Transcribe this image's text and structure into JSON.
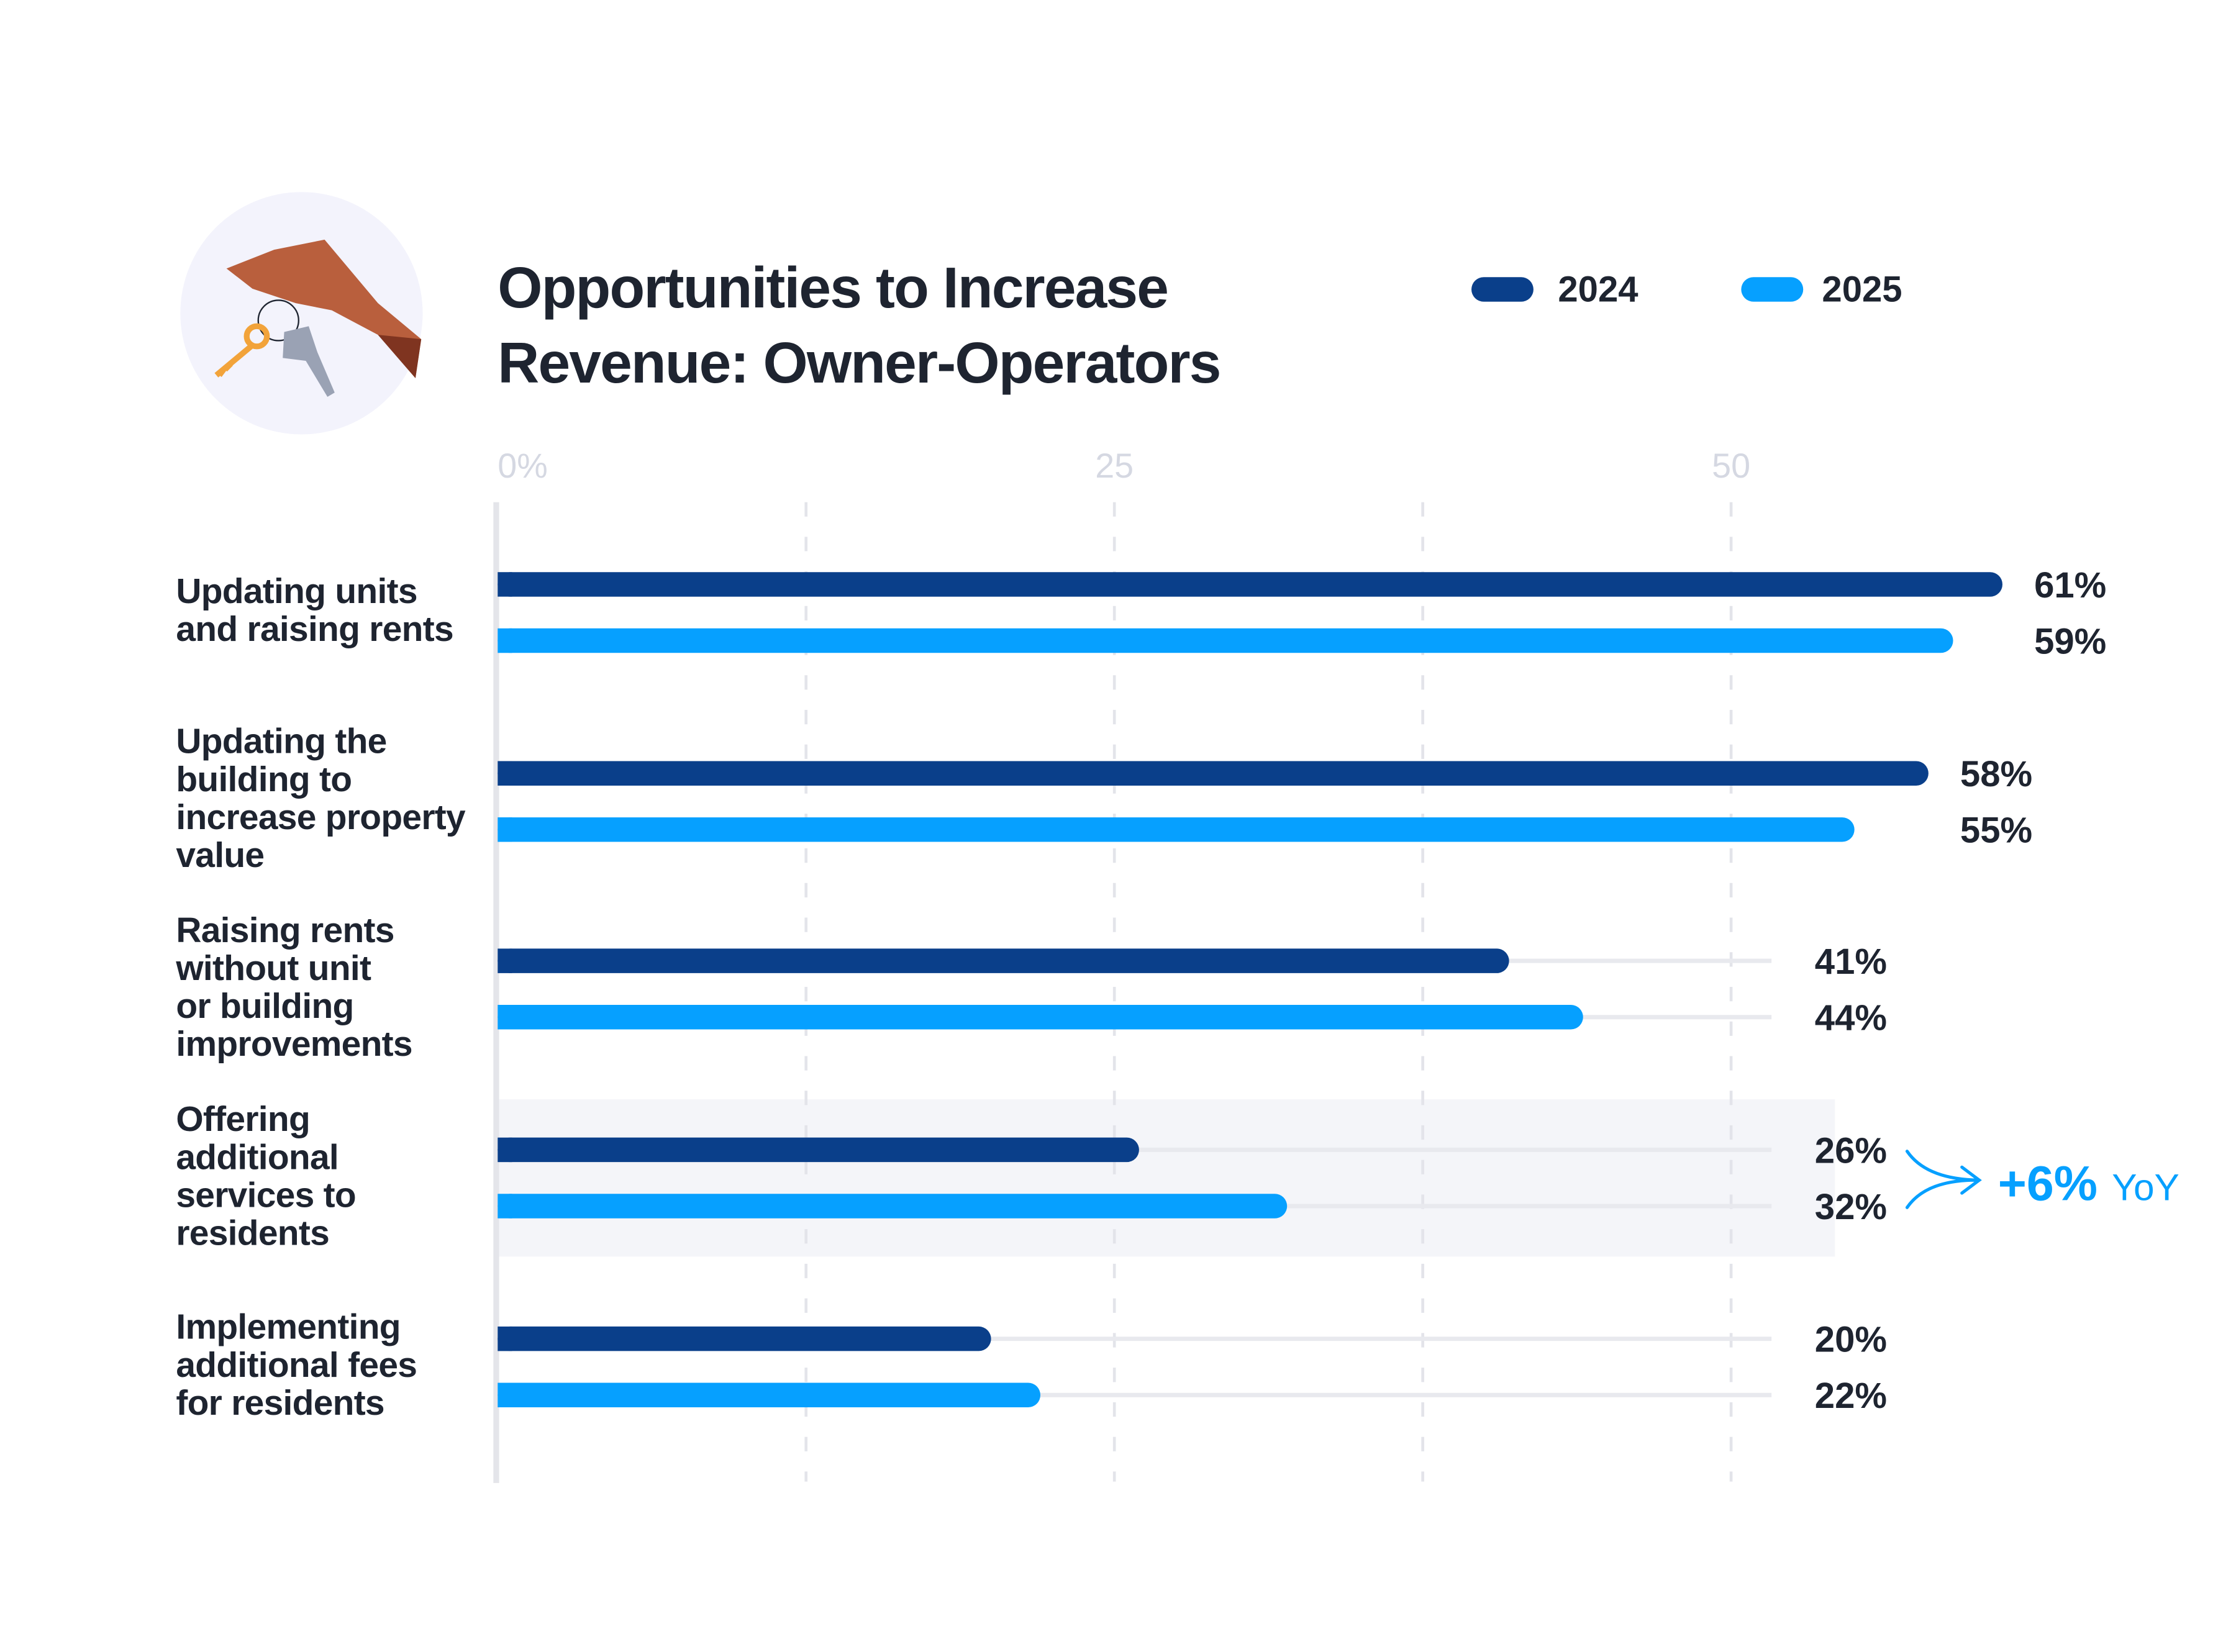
{
  "chart_data": {
    "type": "bar",
    "orientation": "horizontal",
    "title_lines": [
      "Opportunities to Increase",
      "Revenue: Owner-Operators"
    ],
    "legend": {
      "placement": "top-right",
      "entries": [
        {
          "label": "2024",
          "color": "#0a3f8a"
        },
        {
          "label": "2025",
          "color": "#06a0ff"
        }
      ]
    },
    "x_ticks": [
      "0%",
      "25",
      "50"
    ],
    "x_tick_values": [
      0,
      25,
      50
    ],
    "xlim": [
      0,
      62
    ],
    "grid": true,
    "categories": [
      {
        "lines": [
          "Updating units",
          "and raising rents"
        ]
      },
      {
        "lines": [
          "Updating the",
          "building to",
          "increase property",
          "value"
        ]
      },
      {
        "lines": [
          "Raising rents",
          "without unit",
          "or building",
          "improvements"
        ]
      },
      {
        "lines": [
          "Offering",
          "additional",
          "services to",
          "residents"
        ],
        "highlighted": true
      },
      {
        "lines": [
          "Implementing",
          "additional fees",
          "for residents"
        ]
      }
    ],
    "series": [
      {
        "name": "2024",
        "color": "#0a3f8a",
        "values": [
          61,
          58,
          41,
          26,
          20
        ],
        "labels": [
          "61%",
          "58%",
          "41%",
          "26%",
          "20%"
        ]
      },
      {
        "name": "2025",
        "color": "#06a0ff",
        "values": [
          59,
          55,
          44,
          32,
          22
        ],
        "labels": [
          "59%",
          "55%",
          "44%",
          "32%",
          "22%"
        ]
      }
    ],
    "annotation": {
      "value": "+6%",
      "suffix": "YoY",
      "category_index": 3
    }
  },
  "illustration": {
    "icon": "hand-holding-keys-icon",
    "background": "#f3f3fc"
  }
}
